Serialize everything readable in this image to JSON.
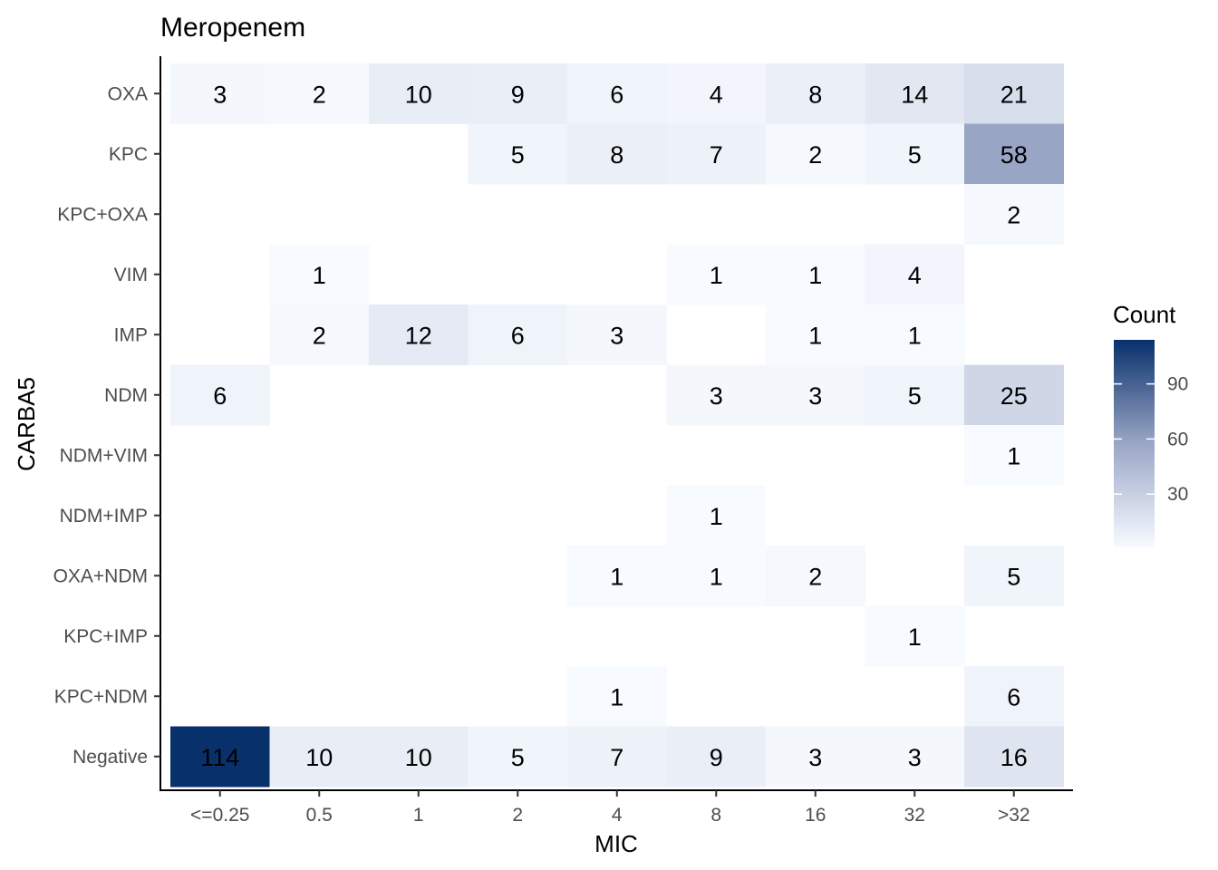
{
  "chart_data": {
    "type": "heatmap",
    "title": "Meropenem",
    "xlabel": "MIC",
    "ylabel": "CARBA5",
    "x_categories": [
      "<=0.25",
      "0.5",
      "1",
      "2",
      "4",
      "8",
      "16",
      "32",
      ">32"
    ],
    "y_categories": [
      "OXA",
      "KPC",
      "KPC+OXA",
      "VIM",
      "IMP",
      "NDM",
      "NDM+VIM",
      "NDM+IMP",
      "OXA+NDM",
      "KPC+IMP",
      "KPC+NDM",
      "Negative"
    ],
    "values": [
      [
        3,
        2,
        10,
        9,
        6,
        4,
        8,
        14,
        21
      ],
      [
        null,
        null,
        null,
        5,
        8,
        7,
        2,
        5,
        58
      ],
      [
        null,
        null,
        null,
        null,
        null,
        null,
        null,
        null,
        2
      ],
      [
        null,
        1,
        null,
        null,
        null,
        1,
        1,
        4,
        null
      ],
      [
        null,
        2,
        12,
        6,
        3,
        null,
        1,
        1,
        null
      ],
      [
        6,
        null,
        null,
        null,
        null,
        3,
        3,
        5,
        25
      ],
      [
        null,
        null,
        null,
        null,
        null,
        null,
        null,
        null,
        1
      ],
      [
        null,
        null,
        null,
        null,
        null,
        1,
        null,
        null,
        null
      ],
      [
        null,
        null,
        null,
        null,
        1,
        1,
        2,
        null,
        5
      ],
      [
        null,
        null,
        null,
        null,
        null,
        null,
        null,
        1,
        null
      ],
      [
        null,
        null,
        null,
        null,
        1,
        null,
        null,
        null,
        6
      ],
      [
        114,
        10,
        10,
        5,
        7,
        9,
        3,
        3,
        16
      ]
    ],
    "legend": {
      "title": "Count",
      "position": "right",
      "ticks": [
        "30",
        "60",
        "90"
      ],
      "range": [
        1,
        114
      ],
      "low_color": "#f7fbff",
      "high_color": "#08306b"
    },
    "grid": false
  }
}
